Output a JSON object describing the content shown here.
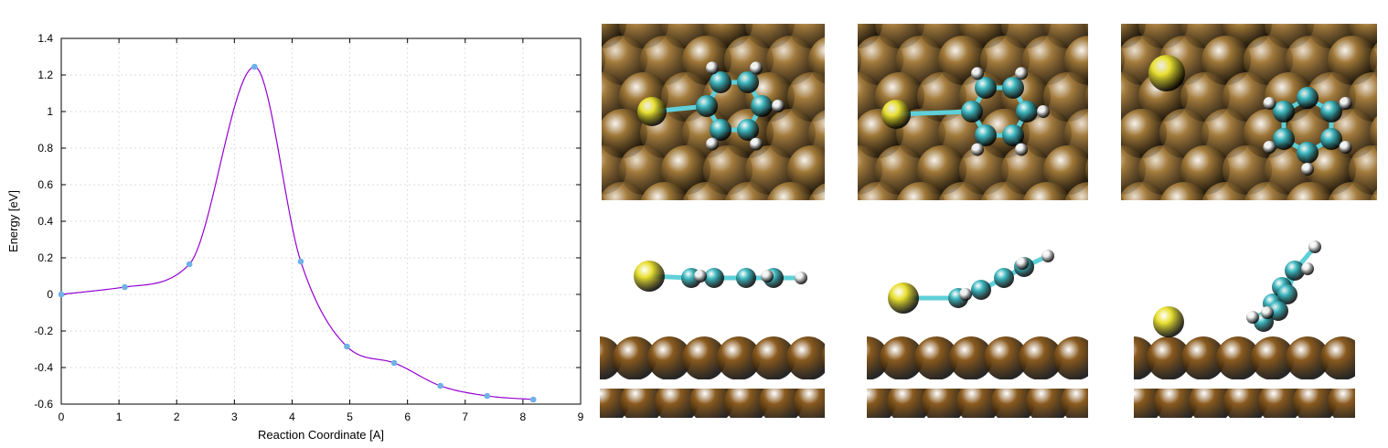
{
  "chart_data": {
    "type": "line",
    "title": "",
    "xlabel": "Reaction Coordinate [A]",
    "ylabel": "Energy [eV]",
    "xlim": [
      0,
      9
    ],
    "ylim": [
      -0.6,
      1.4
    ],
    "xticks": [
      0,
      1,
      2,
      3,
      4,
      5,
      6,
      7,
      8,
      9
    ],
    "yticks": [
      -0.6,
      -0.4,
      -0.2,
      0,
      0.2,
      0.4,
      0.6,
      0.8,
      1,
      1.2,
      1.4
    ],
    "grid": true,
    "series": [
      {
        "color": "#9400d3",
        "marker_color": "#6fb1e8",
        "x": [
          0.0,
          1.1,
          2.22,
          3.35,
          4.15,
          4.95,
          5.77,
          6.57,
          7.38,
          8.18
        ],
        "y": [
          0.0,
          0.04,
          0.165,
          1.245,
          0.18,
          -0.285,
          -0.375,
          -0.5,
          -0.555,
          -0.575
        ]
      }
    ]
  },
  "snapshots": {
    "top_view_surface_color": "#a07838",
    "side_view_surface_color": "#8a5a1e",
    "sulfur_color": "#e8e030",
    "carbon_color": "#40b8c0",
    "hydrogen_color": "#f0f0f0"
  }
}
